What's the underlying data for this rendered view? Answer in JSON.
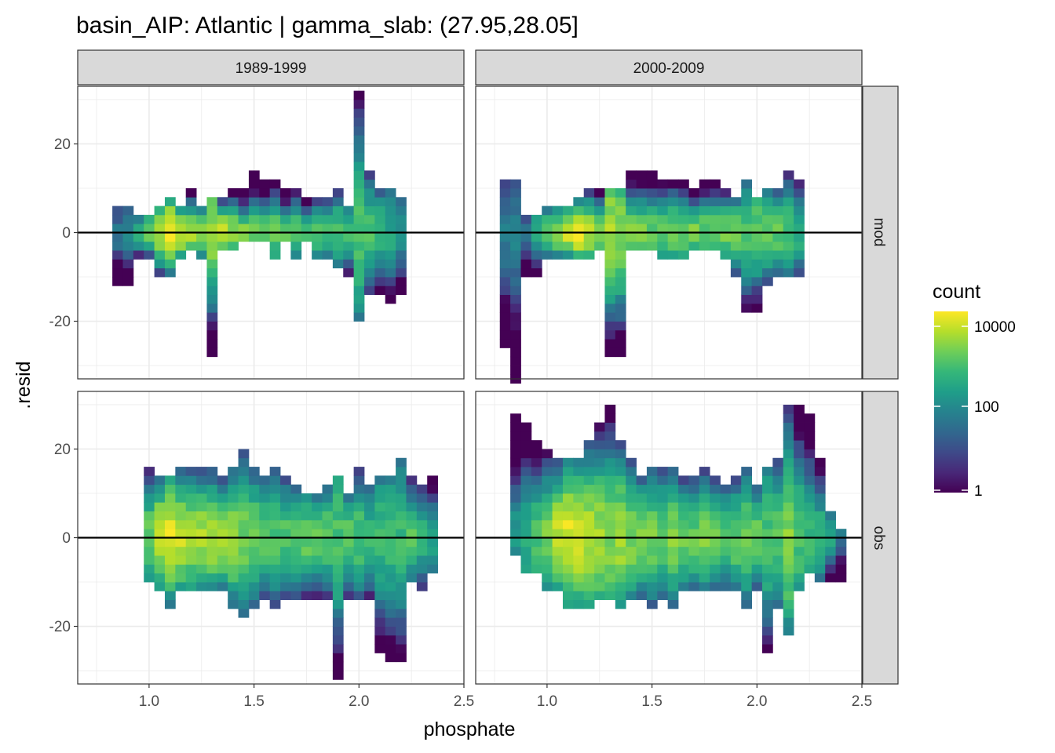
{
  "chart_data": {
    "type": "heatmap",
    "title": "basin_AIP: Atlantic | gamma_slab: (27.95,28.05]",
    "xlabel": "phosphate",
    "ylabel": ".resid",
    "xlim": [
      0.66,
      2.5
    ],
    "ylim": [
      -33,
      33
    ],
    "x_ticks": [
      "1.0",
      "1.5",
      "2.0",
      "2.5"
    ],
    "x_tick_values": [
      1.0,
      1.5,
      2.0,
      2.5
    ],
    "y_ticks": [
      "-20",
      "0",
      "20"
    ],
    "y_tick_values": [
      -20,
      0,
      20
    ],
    "column_facets": [
      "1989-1999",
      "2000-2009"
    ],
    "row_facets": [
      "mod",
      "obs"
    ],
    "legend": {
      "title": "count",
      "position": "right",
      "scale": "log10",
      "breaks": [
        "10000",
        "100",
        "1"
      ],
      "break_values": [
        10000,
        100,
        1
      ],
      "colors": [
        "#440154",
        "#482878",
        "#3e4a89",
        "#31688e",
        "#26828e",
        "#1f9e89",
        "#35b779",
        "#6ece58",
        "#b5de2b",
        "#fde725"
      ]
    },
    "reference_line": {
      "y": 0,
      "color": "#000000"
    },
    "grid": true,
    "bin_width": {
      "x": 0.05,
      "y": 2
    },
    "panels": [
      {
        "column": "1989-1999",
        "row": "mod",
        "x": [
          0.85,
          0.9,
          0.95,
          1.0,
          1.05,
          1.1,
          1.15,
          1.2,
          1.25,
          1.3,
          1.35,
          1.4,
          1.45,
          1.5,
          1.55,
          1.6,
          1.65,
          1.7,
          1.75,
          1.8,
          1.85,
          1.9,
          1.95,
          2.0,
          2.05,
          2.1,
          2.15,
          2.2
        ],
        "y_low": [
          -12,
          -12,
          -6,
          -6,
          -10,
          -10,
          -6,
          -4,
          -6,
          -28,
          -4,
          -4,
          -2,
          -2,
          -2,
          -6,
          -2,
          -6,
          -2,
          -6,
          -6,
          -8,
          -10,
          -20,
          -14,
          -14,
          -16,
          -14
        ],
        "y_high": [
          6,
          6,
          4,
          4,
          6,
          8,
          6,
          10,
          6,
          8,
          8,
          10,
          10,
          14,
          12,
          12,
          10,
          10,
          8,
          8,
          8,
          10,
          6,
          32,
          14,
          10,
          10,
          8
        ],
        "peak_log10": [
          1.6,
          2.0,
          2.6,
          3.2,
          3.7,
          4.0,
          3.9,
          3.6,
          3.5,
          3.4,
          3.8,
          3.5,
          3.3,
          3.2,
          3.2,
          3.1,
          3.1,
          3.0,
          3.0,
          3.0,
          3.0,
          3.0,
          2.9,
          3.0,
          2.9,
          2.7,
          2.5,
          2.2
        ]
      },
      {
        "column": "2000-2009",
        "row": "mod",
        "x": [
          0.8,
          0.85,
          0.9,
          0.95,
          1.0,
          1.05,
          1.1,
          1.15,
          1.2,
          1.25,
          1.3,
          1.35,
          1.4,
          1.45,
          1.5,
          1.55,
          1.6,
          1.65,
          1.7,
          1.75,
          1.8,
          1.85,
          1.9,
          1.95,
          2.0,
          2.05,
          2.1,
          2.15,
          2.2
        ],
        "y_low": [
          -26,
          -34,
          -10,
          -10,
          -6,
          -6,
          -6,
          -6,
          -6,
          -4,
          -28,
          -28,
          -4,
          -4,
          -4,
          -6,
          -6,
          -6,
          -4,
          -4,
          -4,
          -6,
          -10,
          -18,
          -18,
          -12,
          -10,
          -10,
          -10
        ],
        "y_high": [
          12,
          12,
          4,
          4,
          6,
          6,
          6,
          8,
          10,
          10,
          10,
          10,
          14,
          14,
          14,
          12,
          12,
          12,
          10,
          12,
          12,
          10,
          8,
          12,
          8,
          10,
          10,
          14,
          12
        ],
        "peak_log10": [
          1.7,
          1.8,
          1.6,
          2.7,
          3.3,
          3.6,
          3.9,
          4.0,
          3.7,
          3.4,
          3.6,
          3.4,
          3.4,
          3.3,
          3.2,
          3.1,
          3.3,
          3.2,
          3.3,
          3.2,
          3.3,
          3.3,
          3.2,
          2.9,
          3.2,
          3.2,
          3.1,
          3.0,
          2.6
        ]
      },
      {
        "column": "1989-1999",
        "row": "obs",
        "x": [
          1.0,
          1.05,
          1.1,
          1.15,
          1.2,
          1.25,
          1.3,
          1.35,
          1.4,
          1.45,
          1.5,
          1.55,
          1.6,
          1.65,
          1.7,
          1.75,
          1.8,
          1.85,
          1.9,
          1.95,
          2.0,
          2.05,
          2.1,
          2.15,
          2.2,
          2.25,
          2.3,
          2.35
        ],
        "y_low": [
          -10,
          -12,
          -16,
          -12,
          -12,
          -12,
          -12,
          -12,
          -16,
          -18,
          -16,
          -14,
          -16,
          -14,
          -14,
          -14,
          -14,
          -14,
          -32,
          -14,
          -14,
          -14,
          -26,
          -28,
          -28,
          -10,
          -12,
          -8
        ],
        "y_high": [
          16,
          14,
          14,
          16,
          16,
          16,
          16,
          14,
          16,
          20,
          16,
          14,
          16,
          14,
          12,
          10,
          10,
          12,
          14,
          10,
          16,
          12,
          14,
          14,
          18,
          14,
          12,
          14
        ],
        "peak_log10": [
          3.2,
          3.8,
          4.0,
          3.8,
          3.6,
          3.6,
          3.6,
          3.5,
          3.5,
          3.3,
          3.2,
          3.1,
          3.0,
          3.0,
          3.2,
          3.2,
          3.1,
          3.1,
          3.0,
          3.1,
          3.0,
          2.8,
          2.8,
          2.8,
          2.8,
          3.0,
          2.7,
          2.4
        ]
      },
      {
        "column": "2000-2009",
        "row": "obs",
        "x": [
          0.85,
          0.9,
          0.95,
          1.0,
          1.05,
          1.1,
          1.15,
          1.2,
          1.25,
          1.3,
          1.35,
          1.4,
          1.45,
          1.5,
          1.55,
          1.6,
          1.65,
          1.7,
          1.75,
          1.8,
          1.85,
          1.9,
          1.95,
          2.0,
          2.05,
          2.1,
          2.15,
          2.2,
          2.25,
          2.3,
          2.35,
          2.4
        ],
        "y_low": [
          -4,
          -8,
          -8,
          -12,
          -12,
          -16,
          -16,
          -16,
          -14,
          -14,
          -16,
          -14,
          -14,
          -16,
          -14,
          -16,
          -12,
          -12,
          -12,
          -12,
          -12,
          -12,
          -16,
          -12,
          -26,
          -16,
          -22,
          -12,
          -8,
          -10,
          -10,
          -10
        ],
        "y_high": [
          28,
          26,
          22,
          20,
          18,
          18,
          18,
          22,
          26,
          30,
          22,
          18,
          14,
          16,
          16,
          16,
          14,
          14,
          16,
          14,
          12,
          14,
          16,
          12,
          16,
          18,
          30,
          30,
          28,
          18,
          6,
          2
        ],
        "peak_log10": [
          2.2,
          2.6,
          3.0,
          3.3,
          3.8,
          4.0,
          3.9,
          3.7,
          3.6,
          3.4,
          3.6,
          3.4,
          3.3,
          3.3,
          3.2,
          3.4,
          3.3,
          3.2,
          3.3,
          3.2,
          3.1,
          3.2,
          3.2,
          3.2,
          3.0,
          3.1,
          3.4,
          3.0,
          2.8,
          2.7,
          2.4,
          1.7
        ]
      }
    ]
  }
}
